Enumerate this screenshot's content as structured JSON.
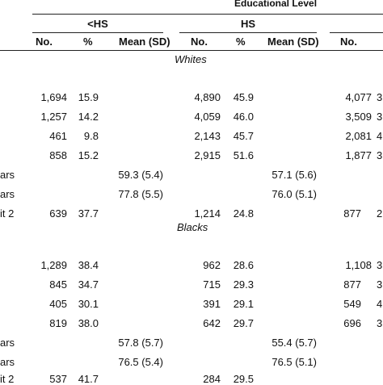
{
  "header": {
    "group_title": "Educational Level",
    "lt_hs": "<HS",
    "hs": "HS"
  },
  "columns": [
    "No.",
    "%",
    "Mean (SD)",
    "No.",
    "%",
    "Mean (SD)",
    "No."
  ],
  "sections": [
    {
      "title": "Whites",
      "rows": [
        {
          "label": "",
          "lths_no": "1,694",
          "lths_pct": "15.9",
          "lths_mean": "",
          "hs_no": "4,890",
          "hs_pct": "45.9",
          "hs_mean": "",
          "next_no": "4,077",
          "edge": "3"
        },
        {
          "label": "",
          "lths_no": "1,257",
          "lths_pct": "14.2",
          "lths_mean": "",
          "hs_no": "4,059",
          "hs_pct": "46.0",
          "hs_mean": "",
          "next_no": "3,509",
          "edge": "3"
        },
        {
          "label": "",
          "lths_no": "461",
          "lths_pct": "9.8",
          "lths_mean": "",
          "hs_no": "2,143",
          "hs_pct": "45.7",
          "hs_mean": "",
          "next_no": "2,081",
          "edge": "4"
        },
        {
          "label": "",
          "lths_no": "858",
          "lths_pct": "15.2",
          "lths_mean": "",
          "hs_no": "2,915",
          "hs_pct": "51.6",
          "hs_mean": "",
          "next_no": "1,877",
          "edge": "3"
        },
        {
          "label": "ars",
          "lths_no": "",
          "lths_pct": "",
          "lths_mean": "59.3 (5.4)",
          "hs_no": "",
          "hs_pct": "",
          "hs_mean": "57.1 (5.6)",
          "next_no": "",
          "edge": ""
        },
        {
          "label": "ars",
          "lths_no": "",
          "lths_pct": "",
          "lths_mean": "77.8 (5.5)",
          "hs_no": "",
          "hs_pct": "",
          "hs_mean": "76.0 (5.1)",
          "next_no": "",
          "edge": ""
        },
        {
          "label": "it 2",
          "lths_no": "639",
          "lths_pct": "37.7",
          "lths_mean": "",
          "hs_no": "1,214",
          "hs_pct": "24.8",
          "hs_mean": "",
          "next_no": "877",
          "edge": "2"
        }
      ]
    },
    {
      "title": "Blacks",
      "rows": [
        {
          "label": "",
          "lths_no": "1,289",
          "lths_pct": "38.4",
          "lths_mean": "",
          "hs_no": "962",
          "hs_pct": "28.6",
          "hs_mean": "",
          "next_no": "1,108",
          "edge": "3"
        },
        {
          "label": "",
          "lths_no": "845",
          "lths_pct": "34.7",
          "lths_mean": "",
          "hs_no": "715",
          "hs_pct": "29.3",
          "hs_mean": "",
          "next_no": "877",
          "edge": "3"
        },
        {
          "label": "",
          "lths_no": "405",
          "lths_pct": "30.1",
          "lths_mean": "",
          "hs_no": "391",
          "hs_pct": "29.1",
          "hs_mean": "",
          "next_no": "549",
          "edge": "4"
        },
        {
          "label": "",
          "lths_no": "819",
          "lths_pct": "38.0",
          "lths_mean": "",
          "hs_no": "642",
          "hs_pct": "29.7",
          "hs_mean": "",
          "next_no": "696",
          "edge": "3"
        },
        {
          "label": "ars",
          "lths_no": "",
          "lths_pct": "",
          "lths_mean": "57.8 (5.7)",
          "hs_no": "",
          "hs_pct": "",
          "hs_mean": "55.4 (5.7)",
          "next_no": "",
          "edge": ""
        },
        {
          "label": "ars",
          "lths_no": "",
          "lths_pct": "",
          "lths_mean": "76.5 (5.4)",
          "hs_no": "",
          "hs_pct": "",
          "hs_mean": "76.5 (5.1)",
          "next_no": "",
          "edge": ""
        },
        {
          "label": "it 2",
          "lths_no": "537",
          "lths_pct": "41.7",
          "lths_mean": "",
          "hs_no": "284",
          "hs_pct": "29.5",
          "hs_mean": "",
          "next_no": "",
          "edge": ""
        }
      ]
    }
  ]
}
